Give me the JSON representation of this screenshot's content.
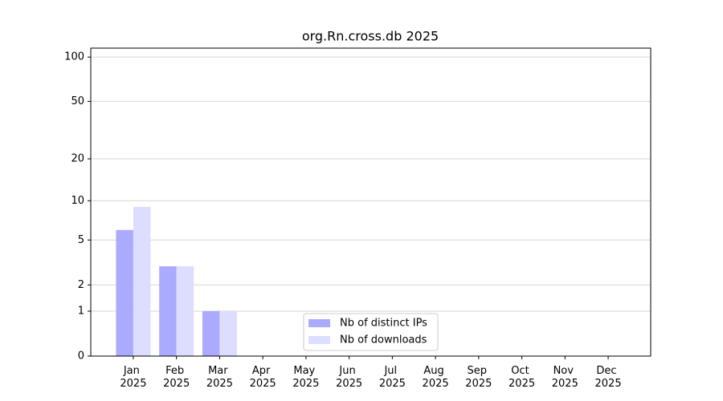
{
  "chart_data": {
    "type": "bar",
    "title": "org.Rn.cross.db 2025",
    "categories": [
      "Jan 2025",
      "Feb 2025",
      "Mar 2025",
      "Apr 2025",
      "May 2025",
      "Jun 2025",
      "Jul 2025",
      "Aug 2025",
      "Sep 2025",
      "Oct 2025",
      "Nov 2025",
      "Dec 2025"
    ],
    "series": [
      {
        "name": "Nb of distinct IPs",
        "color": "#aaaaff",
        "values": [
          6,
          3,
          1,
          0,
          0,
          0,
          0,
          0,
          0,
          0,
          0,
          0
        ]
      },
      {
        "name": "Nb of downloads",
        "color": "#ddddff",
        "values": [
          9,
          3,
          1,
          0,
          0,
          0,
          0,
          0,
          0,
          0,
          0,
          0
        ]
      }
    ],
    "yscale": "log1p",
    "ylim": [
      0,
      115
    ],
    "yticks": [
      0,
      1,
      2,
      5,
      10,
      20,
      50,
      100
    ],
    "grid": true,
    "legend": "lower center"
  }
}
